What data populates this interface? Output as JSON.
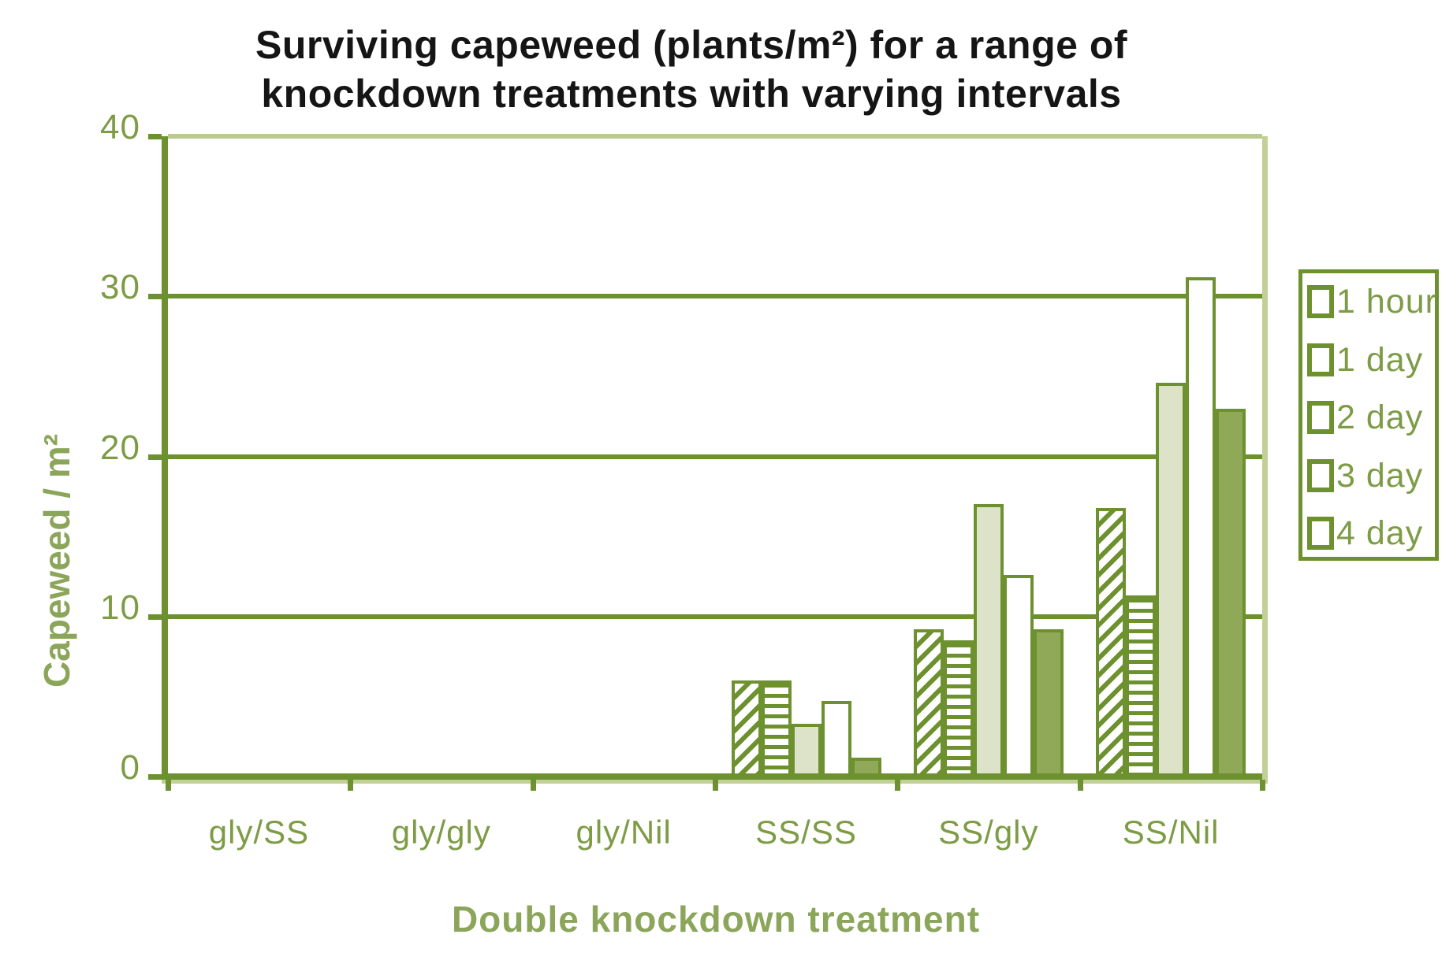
{
  "title": {
    "line1": "Surviving capeweed (plants/m²) for a range of",
    "line2": "knockdown treatments with varying intervals"
  },
  "chart_data": {
    "type": "bar",
    "title": "Surviving capeweed (plants/m²) for a range of knockdown treatments with varying intervals",
    "xlabel": "Double knockdown treatment",
    "ylabel": "Capeweed / m²",
    "ylim": [
      0,
      40
    ],
    "yticks": [
      "0",
      "10",
      "20",
      "30",
      "40"
    ],
    "grid": true,
    "legend_position": "right",
    "categories": [
      "gly/SS",
      "gly/gly",
      "gly/Nil",
      "SS/SS",
      "SS/gly",
      "SS/Nil"
    ],
    "series": [
      {
        "name": "1 hour",
        "pattern": "diagonal-hatch",
        "values": [
          0,
          0,
          0,
          6.0,
          9.2,
          16.8
        ]
      },
      {
        "name": "1 day",
        "pattern": "horizontal-lines",
        "values": [
          0,
          0,
          0,
          6.0,
          8.5,
          11.3
        ]
      },
      {
        "name": "2 day",
        "pattern": "solid-light",
        "values": [
          0,
          0,
          0,
          3.3,
          17.0,
          24.6
        ]
      },
      {
        "name": "3 day",
        "pattern": "solid-white",
        "values": [
          0,
          0,
          0,
          4.7,
          12.6,
          31.2
        ]
      },
      {
        "name": "4 day",
        "pattern": "solid-green",
        "values": [
          0,
          0,
          0,
          1.2,
          9.2,
          23.0
        ]
      }
    ]
  },
  "colors": {
    "axis_dark_green": "#6e9130",
    "pale_green": "#c2d098",
    "grid_top_pale": "#b9cb8e",
    "bar_light_fill": "#dce3c8",
    "bar_solid_fill": "#8fa959",
    "tick_text_green": "#7d9c45",
    "axis_title_green": "#8ba55a",
    "title_black": "#151515"
  }
}
